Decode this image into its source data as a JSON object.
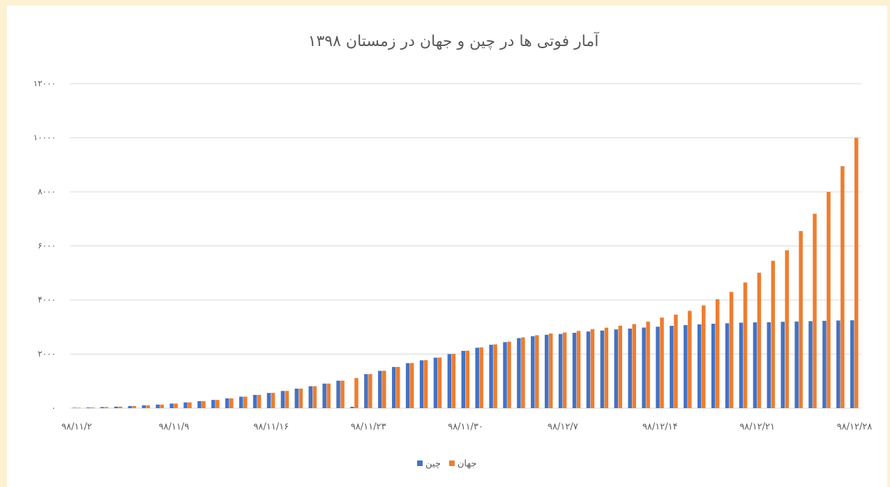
{
  "chart_data": {
    "type": "bar",
    "title": "آمار فوتی ها در چین و جهان در زمستان ۱۳۹۸",
    "categories": [
      "۹۸/۱۱/۲",
      null,
      null,
      null,
      null,
      null,
      null,
      "۹۸/۱۱/۹",
      null,
      null,
      null,
      null,
      null,
      null,
      "۹۸/۱۱/۱۶",
      null,
      null,
      null,
      null,
      null,
      null,
      "۹۸/۱۱/۲۳",
      null,
      null,
      null,
      null,
      null,
      null,
      "۹۸/۱۱/۳۰",
      null,
      null,
      null,
      null,
      null,
      null,
      "۹۸/۱۲/۷",
      null,
      null,
      null,
      null,
      null,
      null,
      "۹۸/۱۲/۱۴",
      null,
      null,
      null,
      null,
      null,
      null,
      "۹۸/۱۲/۲۱",
      null,
      null,
      null,
      null,
      null,
      null,
      "۹۸/۱۲/۲۸"
    ],
    "series": [
      {
        "name": "چین",
        "color": "#4472c4",
        "values": [
          17,
          25,
          41,
          56,
          80,
          106,
          132,
          170,
          213,
          259,
          304,
          361,
          425,
          490,
          563,
          636,
          722,
          811,
          908,
          1016,
          50,
          1259,
          1380,
          1523,
          1665,
          1770,
          1868,
          2004,
          2118,
          2236,
          2345,
          2442,
          2592,
          2663,
          2715,
          2744,
          2788,
          2835,
          2870,
          2912,
          2943,
          2981,
          3012,
          3045,
          3073,
          3099,
          3122,
          3140,
          3162,
          3172,
          3180,
          3194,
          3204,
          3218,
          3231,
          3242,
          3249
        ]
      },
      {
        "name": "جهان",
        "color": "#ed7d31",
        "values": [
          17,
          25,
          41,
          56,
          80,
          106,
          132,
          170,
          213,
          259,
          305,
          362,
          426,
          492,
          565,
          638,
          724,
          813,
          910,
          1018,
          1115,
          1261,
          1383,
          1526,
          1669,
          1775,
          1873,
          2009,
          2126,
          2247,
          2360,
          2460,
          2618,
          2699,
          2763,
          2800,
          2858,
          2923,
          2977,
          3050,
          3110,
          3200,
          3350,
          3460,
          3600,
          3800,
          4030,
          4300,
          4650,
          5010,
          5450,
          5840,
          6550,
          7190,
          8000,
          8950,
          10000
        ]
      }
    ],
    "ylim": [
      0,
      12000
    ],
    "yticks": [
      {
        "value": 0,
        "label": "۰"
      },
      {
        "value": 2000,
        "label": "۲۰۰۰"
      },
      {
        "value": 4000,
        "label": "۴۰۰۰"
      },
      {
        "value": 6000,
        "label": "۶۰۰۰"
      },
      {
        "value": 8000,
        "label": "۸۰۰۰"
      },
      {
        "value": 10000,
        "label": "۱۰۰۰۰"
      },
      {
        "value": 12000,
        "label": "۱۲۰۰۰"
      }
    ],
    "grid": true,
    "legend": "bottom"
  }
}
